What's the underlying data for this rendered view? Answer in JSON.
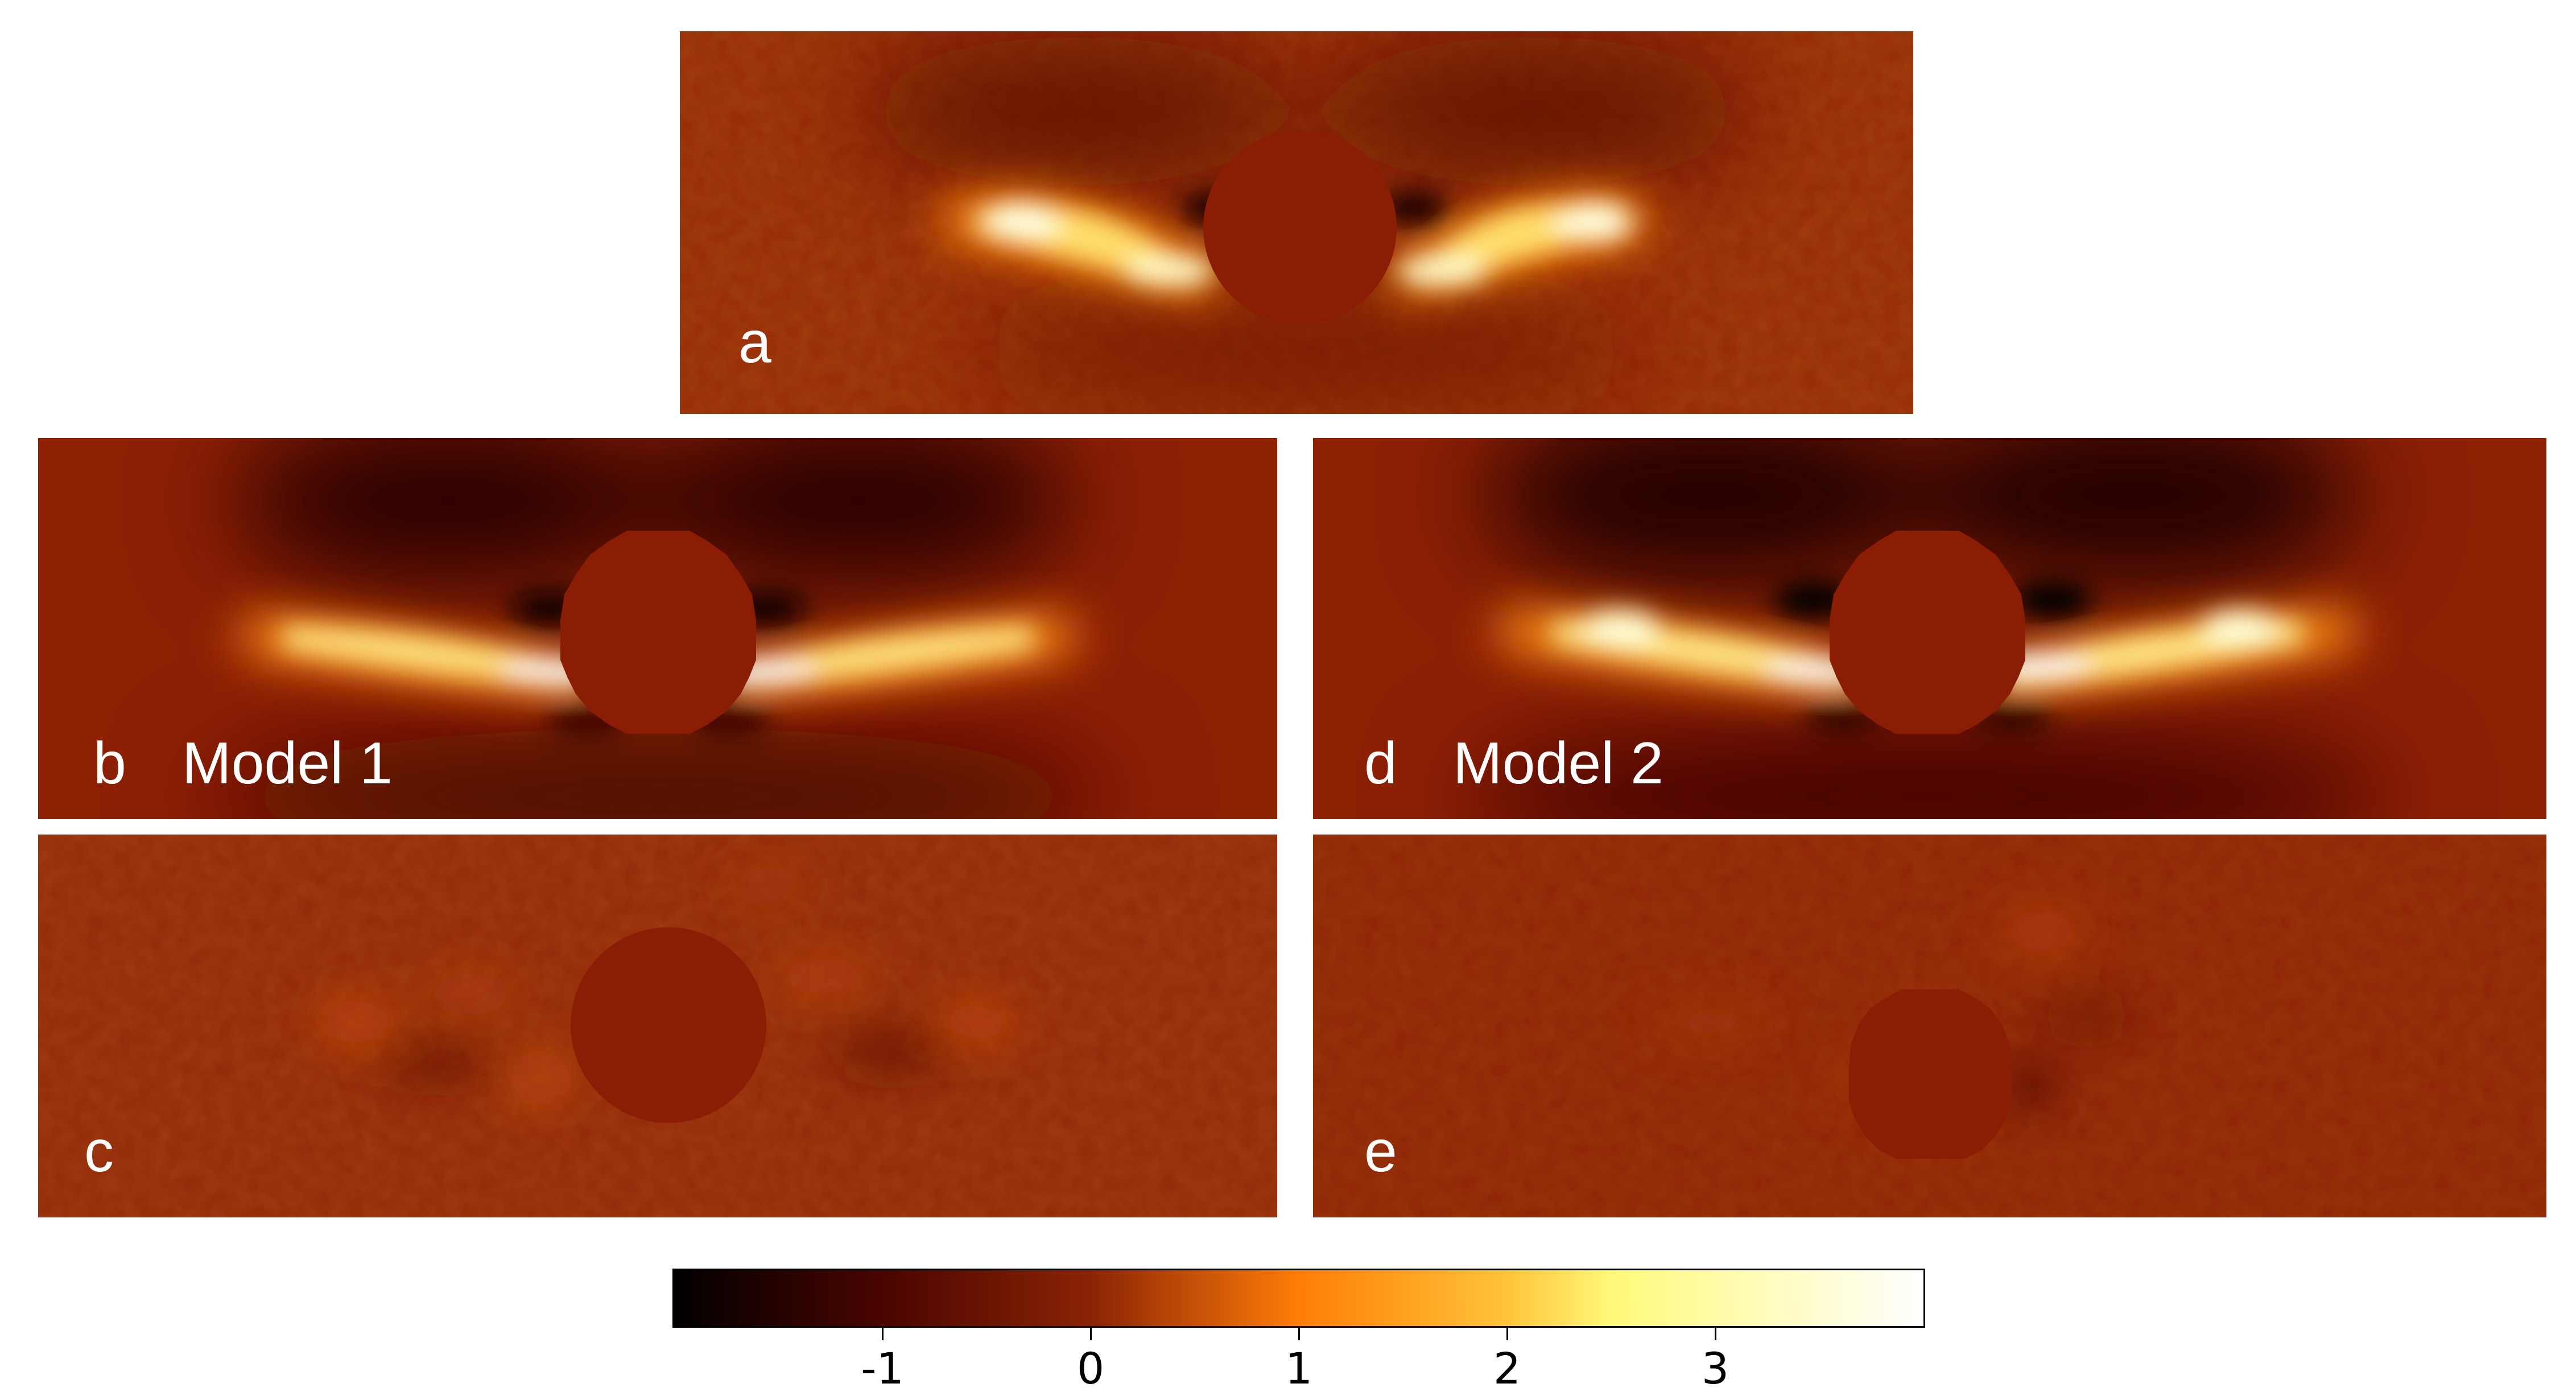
{
  "figure": {
    "panels": [
      {
        "id": "a",
        "letter": "a",
        "title": ""
      },
      {
        "id": "b",
        "letter": "b",
        "title": "Model 1"
      },
      {
        "id": "c",
        "letter": "c",
        "title": ""
      },
      {
        "id": "d",
        "letter": "d",
        "title": "Model 2"
      },
      {
        "id": "e",
        "letter": "e",
        "title": ""
      }
    ],
    "colorbar": {
      "ticks": [
        "-1",
        "0",
        "1",
        "2",
        "3"
      ],
      "tick_values": [
        -1,
        0,
        1,
        2,
        3
      ],
      "range": [
        -2.0,
        4.0
      ],
      "colormap": "afmhot",
      "colormap_stops": [
        {
          "value": -2.0,
          "color": "#000000"
        },
        {
          "value": -1.0,
          "color": "#4a0500"
        },
        {
          "value": 0.0,
          "color": "#8a2305"
        },
        {
          "value": 1.0,
          "color": "#ff7d08"
        },
        {
          "value": 2.0,
          "color": "#ffc43a"
        },
        {
          "value": 2.5,
          "color": "#fff97a"
        },
        {
          "value": 4.0,
          "color": "#ffffff"
        }
      ]
    },
    "colors": {
      "background_level": "#8a2305",
      "mask": "#8a1d03",
      "label_text": "#ffffff"
    }
  }
}
